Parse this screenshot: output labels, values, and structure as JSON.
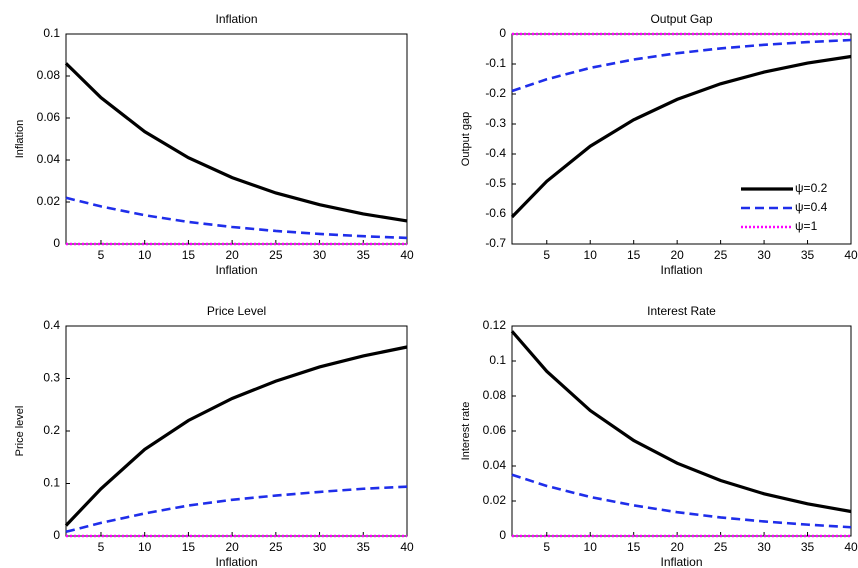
{
  "chart_data": [
    {
      "type": "line",
      "title": "Inflation",
      "x_label": "Inflation",
      "y_label": "Inflation",
      "x": [
        1,
        5,
        10,
        15,
        20,
        25,
        30,
        35,
        40
      ],
      "xlim": [
        1,
        40
      ],
      "xticks": [
        5,
        10,
        15,
        20,
        25,
        30,
        35,
        40
      ],
      "ylim": [
        0,
        0.1
      ],
      "yticks": [
        0,
        0.02,
        0.04,
        0.06,
        0.08,
        0.1
      ],
      "series": [
        {
          "color": "#000000",
          "style": "solid",
          "values": [
            0.086,
            0.0697,
            0.0535,
            0.0411,
            0.0316,
            0.0243,
            0.0187,
            0.0143,
            0.011
          ]
        },
        {
          "color": "#1f2eea",
          "style": "dashed",
          "values": [
            0.022,
            0.0179,
            0.0137,
            0.0105,
            0.0081,
            0.0062,
            0.0048,
            0.0037,
            0.0029
          ]
        },
        {
          "color": "#ff00ff",
          "style": "dotted",
          "values": [
            0,
            0,
            0,
            0,
            0,
            0,
            0,
            0,
            0
          ]
        }
      ]
    },
    {
      "type": "line",
      "title": "Output Gap",
      "x_label": "Inflation",
      "y_label": "Output gap",
      "x": [
        1,
        5,
        10,
        15,
        20,
        25,
        30,
        35,
        40
      ],
      "xlim": [
        1,
        40
      ],
      "xticks": [
        5,
        10,
        15,
        20,
        25,
        30,
        35,
        40
      ],
      "ylim": [
        -0.7,
        0
      ],
      "yticks": [
        -0.7,
        -0.6,
        -0.5,
        -0.4,
        -0.3,
        -0.2,
        -0.1,
        0
      ],
      "legend": "lower right",
      "series": [
        {
          "name": "ψ=0.2",
          "color": "#000000",
          "style": "solid",
          "values": [
            -0.61,
            -0.491,
            -0.374,
            -0.286,
            -0.218,
            -0.166,
            -0.127,
            -0.097,
            -0.075
          ]
        },
        {
          "name": "ψ=0.4",
          "color": "#1f2eea",
          "style": "dashed",
          "values": [
            -0.19,
            -0.151,
            -0.113,
            -0.085,
            -0.064,
            -0.048,
            -0.036,
            -0.027,
            -0.02
          ]
        },
        {
          "name": "ψ=1",
          "color": "#ff00ff",
          "style": "dotted",
          "values": [
            0,
            0,
            0,
            0,
            0,
            0,
            0,
            0,
            0
          ]
        }
      ]
    },
    {
      "type": "line",
      "title": "Price Level",
      "x_label": "Inflation",
      "y_label": "Price level",
      "x": [
        1,
        5,
        10,
        15,
        20,
        25,
        30,
        35,
        40
      ],
      "xlim": [
        1,
        40
      ],
      "xticks": [
        5,
        10,
        15,
        20,
        25,
        30,
        35,
        40
      ],
      "ylim": [
        0,
        0.4
      ],
      "yticks": [
        0,
        0.1,
        0.2,
        0.3,
        0.4
      ],
      "series": [
        {
          "color": "#000000",
          "style": "solid",
          "values": [
            0.02,
            0.09,
            0.165,
            0.22,
            0.262,
            0.295,
            0.322,
            0.343,
            0.36
          ]
        },
        {
          "color": "#1f2eea",
          "style": "dashed",
          "values": [
            0.008,
            0.025,
            0.043,
            0.058,
            0.069,
            0.077,
            0.084,
            0.09,
            0.094
          ]
        },
        {
          "color": "#ff00ff",
          "style": "dotted",
          "values": [
            0,
            0,
            0,
            0,
            0,
            0,
            0,
            0,
            0
          ]
        }
      ]
    },
    {
      "type": "line",
      "title": "Interest Rate",
      "x_label": "Inflation",
      "y_label": "Interest rate",
      "x": [
        1,
        5,
        10,
        15,
        20,
        25,
        30,
        35,
        40
      ],
      "xlim": [
        1,
        40
      ],
      "xticks": [
        5,
        10,
        15,
        20,
        25,
        30,
        35,
        40
      ],
      "ylim": [
        0,
        0.12
      ],
      "yticks": [
        0,
        0.02,
        0.04,
        0.06,
        0.08,
        0.1,
        0.12
      ],
      "series": [
        {
          "color": "#000000",
          "style": "solid",
          "values": [
            0.117,
            0.0941,
            0.0717,
            0.0546,
            0.0416,
            0.0317,
            0.0241,
            0.0184,
            0.014
          ]
        },
        {
          "color": "#1f2eea",
          "style": "dashed",
          "values": [
            0.035,
            0.0286,
            0.0223,
            0.0175,
            0.0136,
            0.0106,
            0.0083,
            0.0065,
            0.005
          ]
        },
        {
          "color": "#ff00ff",
          "style": "dotted",
          "values": [
            0,
            0,
            0,
            0,
            0,
            0,
            0,
            0,
            0
          ]
        }
      ]
    }
  ]
}
